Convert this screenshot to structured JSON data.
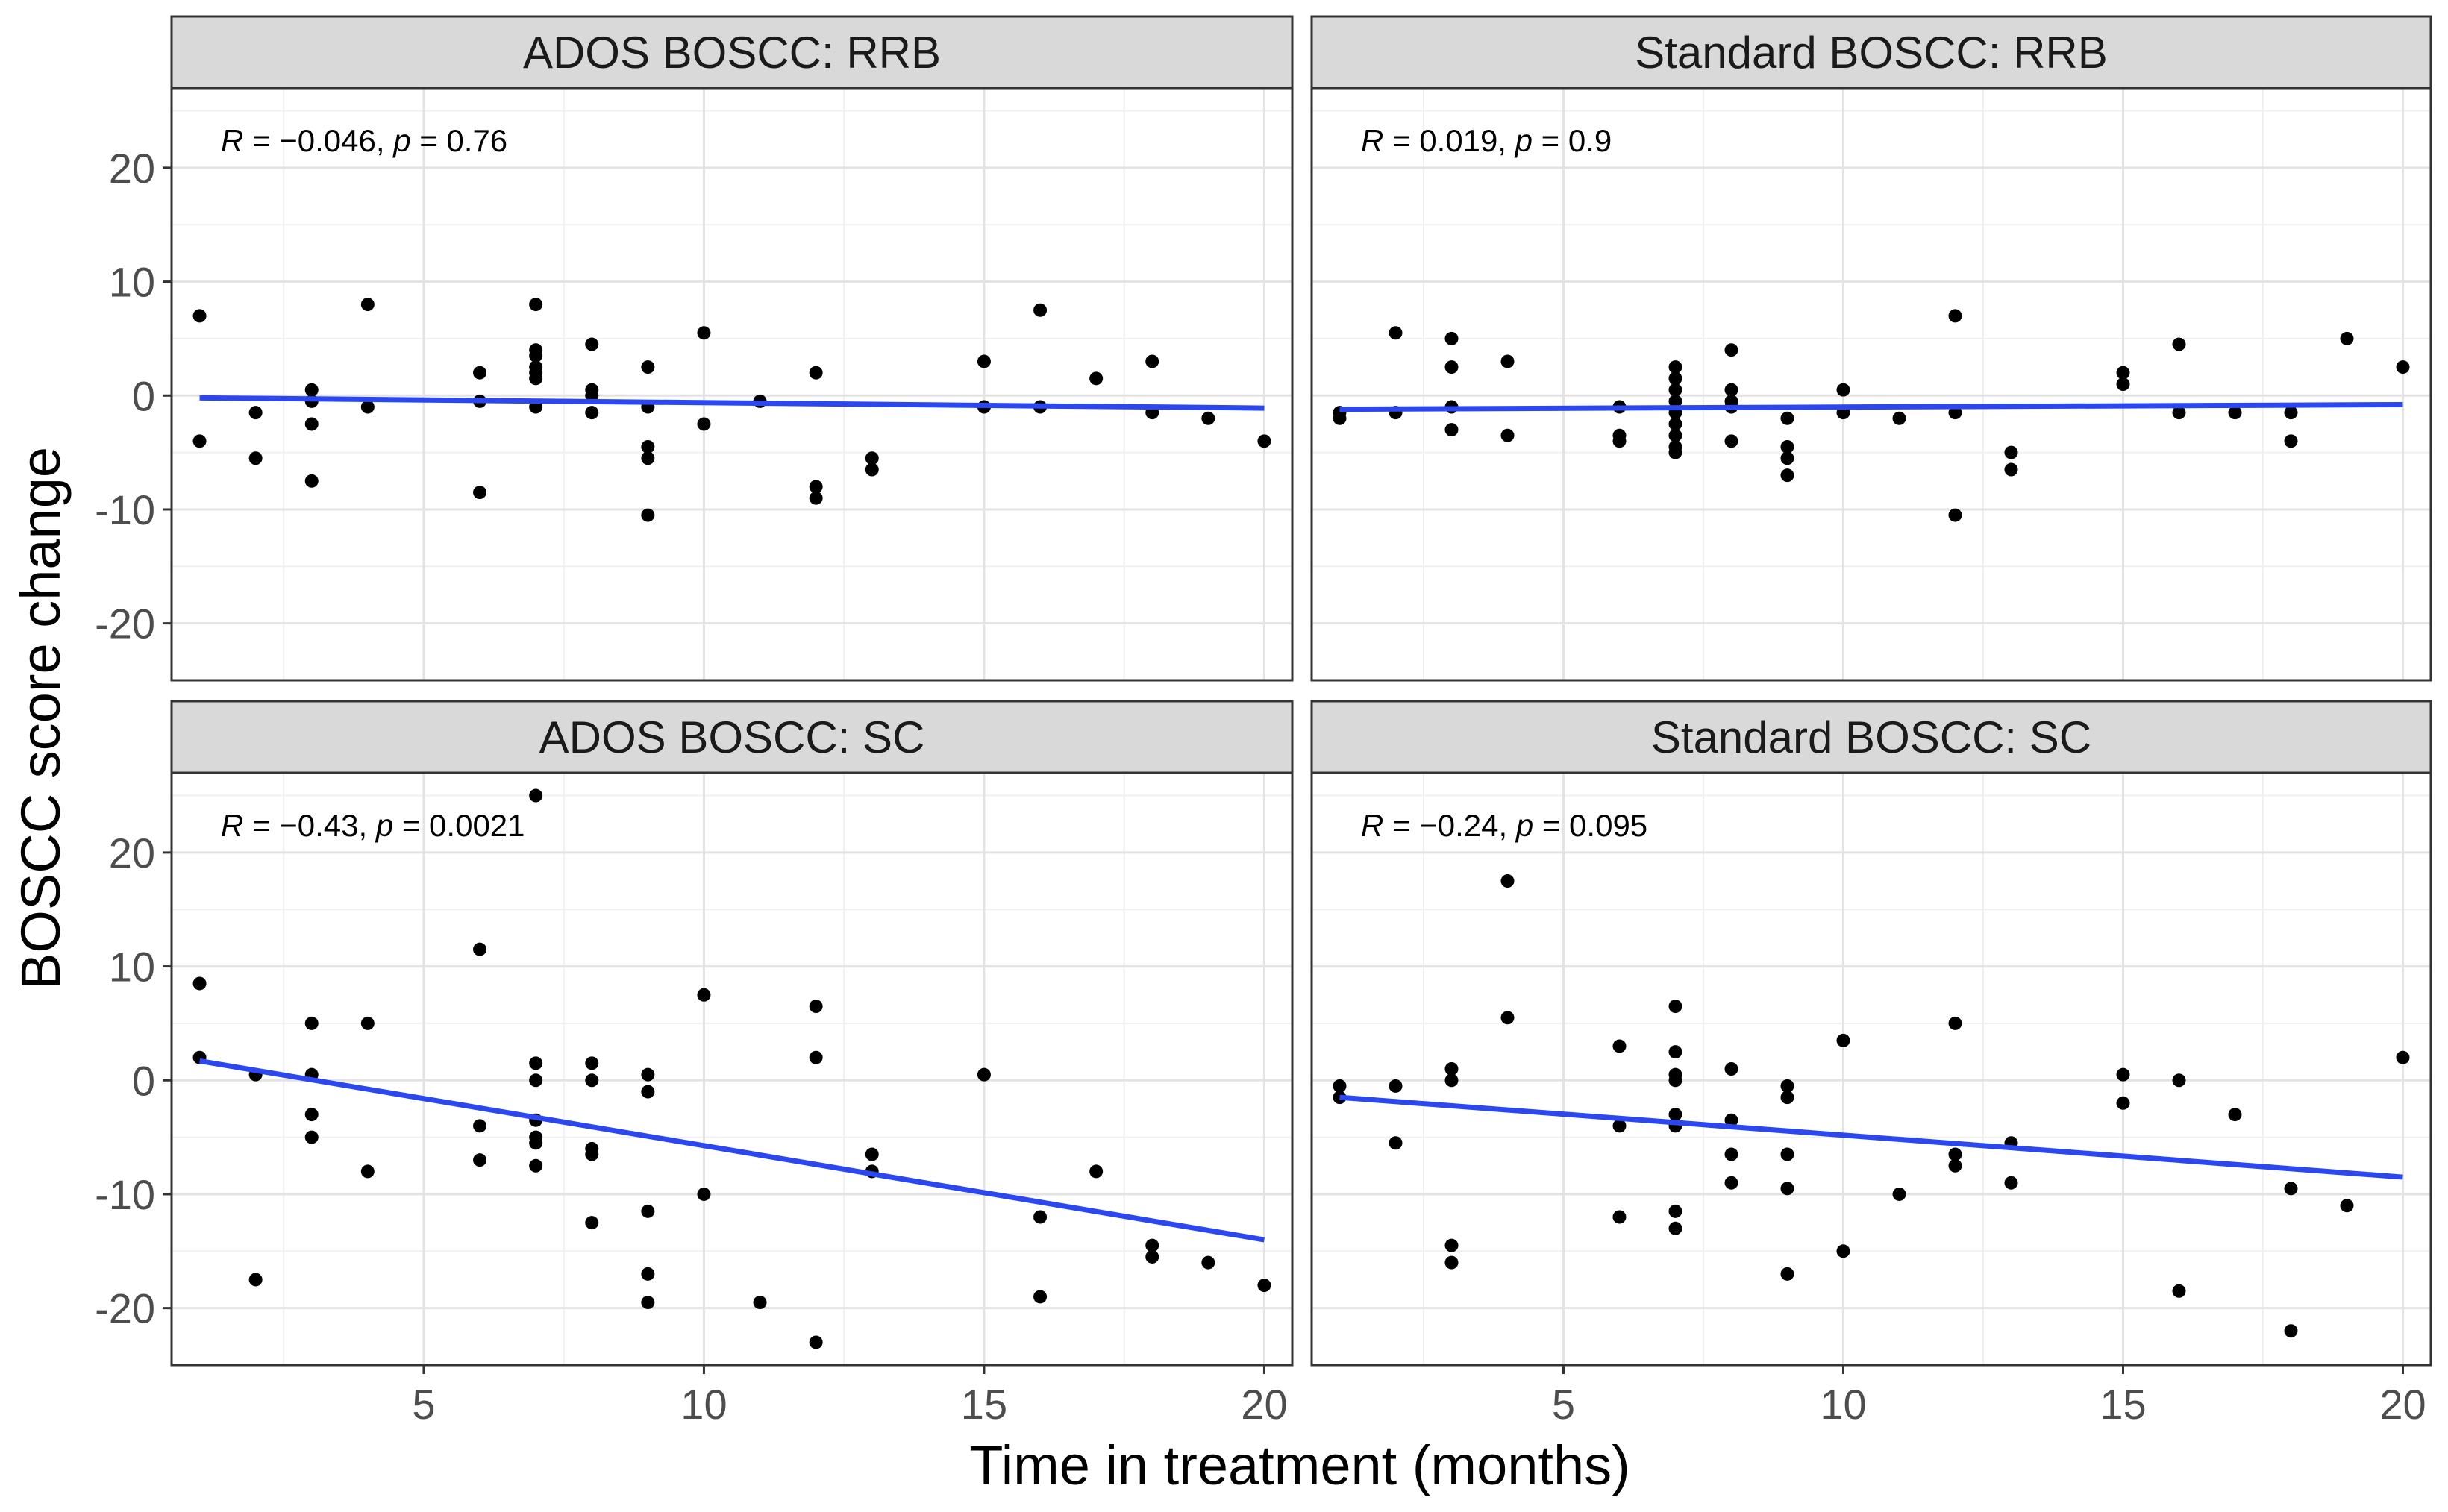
{
  "figure": {
    "xlabel": "Time in treatment (months)",
    "ylabel": "BOSCC score change"
  },
  "chart_data": [
    {
      "type": "scatter",
      "title": "ADOS BOSCC: RRB",
      "annotation": {
        "r_label": "R",
        "r_text": " = −0.046, ",
        "p_label": "p",
        "p_text": " = 0.76"
      },
      "xlabel": "Time in treatment (months)",
      "ylabel": "BOSCC score change",
      "xlim": [
        0.5,
        20.5
      ],
      "ylim": [
        -25,
        27
      ],
      "x_ticks": [
        5,
        10,
        15,
        20
      ],
      "y_ticks": [
        20,
        10,
        0,
        -10,
        -20
      ],
      "grid": true,
      "points": [
        [
          1,
          7
        ],
        [
          1,
          -4
        ],
        [
          2,
          -1.5
        ],
        [
          2,
          -5.5
        ],
        [
          3,
          0.5
        ],
        [
          3,
          -0.5
        ],
        [
          3,
          -2.5
        ],
        [
          3,
          -7.5
        ],
        [
          4,
          8
        ],
        [
          4,
          -1
        ],
        [
          6,
          2
        ],
        [
          6,
          -0.5
        ],
        [
          6,
          -8.5
        ],
        [
          7,
          8
        ],
        [
          7,
          4
        ],
        [
          7,
          3.5
        ],
        [
          7,
          2.5
        ],
        [
          7,
          2
        ],
        [
          7,
          1.5
        ],
        [
          7,
          -1
        ],
        [
          8,
          4.5
        ],
        [
          8,
          0.5
        ],
        [
          8,
          0
        ],
        [
          8,
          -1.5
        ],
        [
          9,
          2.5
        ],
        [
          9,
          -1
        ],
        [
          9,
          -4.5
        ],
        [
          9,
          -5.5
        ],
        [
          9,
          -10.5
        ],
        [
          10,
          5.5
        ],
        [
          10,
          -2.5
        ],
        [
          11,
          -0.5
        ],
        [
          12,
          2
        ],
        [
          12,
          -8
        ],
        [
          12,
          -9
        ],
        [
          13,
          -5.5
        ],
        [
          13,
          -6.5
        ],
        [
          15,
          3
        ],
        [
          15,
          -1
        ],
        [
          16,
          7.5
        ],
        [
          16,
          -1
        ],
        [
          17,
          1.5
        ],
        [
          18,
          3
        ],
        [
          18,
          -1.5
        ],
        [
          19,
          -2
        ],
        [
          20,
          -4
        ]
      ],
      "fit": {
        "x": [
          1,
          20
        ],
        "y": [
          -0.2,
          -1.1
        ]
      }
    },
    {
      "type": "scatter",
      "title": "Standard BOSCC: RRB",
      "annotation": {
        "r_label": "R",
        "r_text": " = 0.019, ",
        "p_label": "p",
        "p_text": " = 0.9"
      },
      "xlabel": "Time in treatment (months)",
      "ylabel": "BOSCC score change",
      "xlim": [
        0.5,
        20.5
      ],
      "ylim": [
        -25,
        27
      ],
      "x_ticks": [
        5,
        10,
        15,
        20
      ],
      "y_ticks": [
        20,
        10,
        0,
        -10,
        -20
      ],
      "grid": true,
      "points": [
        [
          1,
          -1.5
        ],
        [
          1,
          -2
        ],
        [
          2,
          5.5
        ],
        [
          2,
          -1.5
        ],
        [
          3,
          5
        ],
        [
          3,
          2.5
        ],
        [
          3,
          -1
        ],
        [
          3,
          -3
        ],
        [
          4,
          3
        ],
        [
          4,
          -3.5
        ],
        [
          6,
          -1
        ],
        [
          6,
          -3.5
        ],
        [
          6,
          -4
        ],
        [
          7,
          2.5
        ],
        [
          7,
          1.5
        ],
        [
          7,
          0.5
        ],
        [
          7,
          -0.5
        ],
        [
          7,
          -1.5
        ],
        [
          7,
          -2.5
        ],
        [
          7,
          -3.5
        ],
        [
          7,
          -4.5
        ],
        [
          7,
          -5
        ],
        [
          8,
          4
        ],
        [
          8,
          0.5
        ],
        [
          8,
          -0.5
        ],
        [
          8,
          -1
        ],
        [
          8,
          -4
        ],
        [
          9,
          -2
        ],
        [
          9,
          -4.5
        ],
        [
          9,
          -5.5
        ],
        [
          9,
          -7
        ],
        [
          10,
          0.5
        ],
        [
          10,
          -1.5
        ],
        [
          11,
          -2
        ],
        [
          12,
          7
        ],
        [
          12,
          -1.5
        ],
        [
          12,
          -10.5
        ],
        [
          13,
          -5
        ],
        [
          13,
          -6.5
        ],
        [
          15,
          2
        ],
        [
          15,
          1
        ],
        [
          16,
          4.5
        ],
        [
          16,
          -1.5
        ],
        [
          17,
          -1.5
        ],
        [
          18,
          -1.5
        ],
        [
          18,
          -4
        ],
        [
          19,
          5
        ],
        [
          20,
          2.5
        ]
      ],
      "fit": {
        "x": [
          1,
          20
        ],
        "y": [
          -1.2,
          -0.8
        ]
      }
    },
    {
      "type": "scatter",
      "title": "ADOS BOSCC: SC",
      "annotation": {
        "r_label": "R",
        "r_text": " = −0.43, ",
        "p_label": "p",
        "p_text": " = 0.0021"
      },
      "xlabel": "Time in treatment (months)",
      "ylabel": "BOSCC score change",
      "xlim": [
        0.5,
        20.5
      ],
      "ylim": [
        -25,
        27
      ],
      "x_ticks": [
        5,
        10,
        15,
        20
      ],
      "y_ticks": [
        20,
        10,
        0,
        -10,
        -20
      ],
      "grid": true,
      "points": [
        [
          1,
          8.5
        ],
        [
          1,
          2
        ],
        [
          2,
          0.5
        ],
        [
          2,
          -17.5
        ],
        [
          3,
          5
        ],
        [
          3,
          0.5
        ],
        [
          3,
          -3
        ],
        [
          3,
          -5
        ],
        [
          4,
          5
        ],
        [
          4,
          -8
        ],
        [
          6,
          11.5
        ],
        [
          6,
          -4
        ],
        [
          6,
          -7
        ],
        [
          7,
          25
        ],
        [
          7,
          1.5
        ],
        [
          7,
          0
        ],
        [
          7,
          -3.5
        ],
        [
          7,
          -5
        ],
        [
          7,
          -5.5
        ],
        [
          7,
          -7.5
        ],
        [
          8,
          1.5
        ],
        [
          8,
          0
        ],
        [
          8,
          -6
        ],
        [
          8,
          -6.5
        ],
        [
          8,
          -12.5
        ],
        [
          9,
          0.5
        ],
        [
          9,
          -1
        ],
        [
          9,
          -11.5
        ],
        [
          9,
          -17
        ],
        [
          9,
          -19.5
        ],
        [
          10,
          7.5
        ],
        [
          10,
          -10
        ],
        [
          11,
          -19.5
        ],
        [
          12,
          6.5
        ],
        [
          12,
          2
        ],
        [
          12,
          -23
        ],
        [
          13,
          -6.5
        ],
        [
          13,
          -8
        ],
        [
          15,
          0.5
        ],
        [
          16,
          -12
        ],
        [
          16,
          -19
        ],
        [
          17,
          -8
        ],
        [
          18,
          -14.5
        ],
        [
          18,
          -15.5
        ],
        [
          19,
          -16
        ],
        [
          20,
          -18
        ]
      ],
      "fit": {
        "x": [
          1,
          20
        ],
        "y": [
          1.7,
          -14
        ]
      }
    },
    {
      "type": "scatter",
      "title": "Standard BOSCC: SC",
      "annotation": {
        "r_label": "R",
        "r_text": " = −0.24, ",
        "p_label": "p",
        "p_text": " = 0.095"
      },
      "xlabel": "Time in treatment (months)",
      "ylabel": "BOSCC score change",
      "xlim": [
        0.5,
        20.5
      ],
      "ylim": [
        -25,
        27
      ],
      "x_ticks": [
        5,
        10,
        15,
        20
      ],
      "y_ticks": [
        20,
        10,
        0,
        -10,
        -20
      ],
      "grid": true,
      "points": [
        [
          1,
          -0.5
        ],
        [
          1,
          -1.5
        ],
        [
          2,
          -0.5
        ],
        [
          2,
          -5.5
        ],
        [
          3,
          1
        ],
        [
          3,
          0
        ],
        [
          3,
          -14.5
        ],
        [
          3,
          -16
        ],
        [
          4,
          17.5
        ],
        [
          4,
          5.5
        ],
        [
          6,
          3
        ],
        [
          6,
          -4
        ],
        [
          6,
          -12
        ],
        [
          7,
          6.5
        ],
        [
          7,
          2.5
        ],
        [
          7,
          0.5
        ],
        [
          7,
          0
        ],
        [
          7,
          -3
        ],
        [
          7,
          -4
        ],
        [
          7,
          -11.5
        ],
        [
          7,
          -13
        ],
        [
          8,
          1
        ],
        [
          8,
          -3.5
        ],
        [
          8,
          -6.5
        ],
        [
          8,
          -9
        ],
        [
          9,
          -0.5
        ],
        [
          9,
          -1.5
        ],
        [
          9,
          -6.5
        ],
        [
          9,
          -9.5
        ],
        [
          9,
          -17
        ],
        [
          10,
          3.5
        ],
        [
          10,
          -15
        ],
        [
          11,
          -10
        ],
        [
          12,
          5
        ],
        [
          12,
          -6.5
        ],
        [
          12,
          -7.5
        ],
        [
          13,
          -5.5
        ],
        [
          13,
          -9
        ],
        [
          15,
          0.5
        ],
        [
          15,
          -2
        ],
        [
          16,
          0
        ],
        [
          16,
          -18.5
        ],
        [
          17,
          -3
        ],
        [
          18,
          -9.5
        ],
        [
          18,
          -22
        ],
        [
          19,
          -11
        ],
        [
          20,
          2
        ]
      ],
      "fit": {
        "x": [
          1,
          20
        ],
        "y": [
          -1.5,
          -8.5
        ]
      }
    }
  ]
}
